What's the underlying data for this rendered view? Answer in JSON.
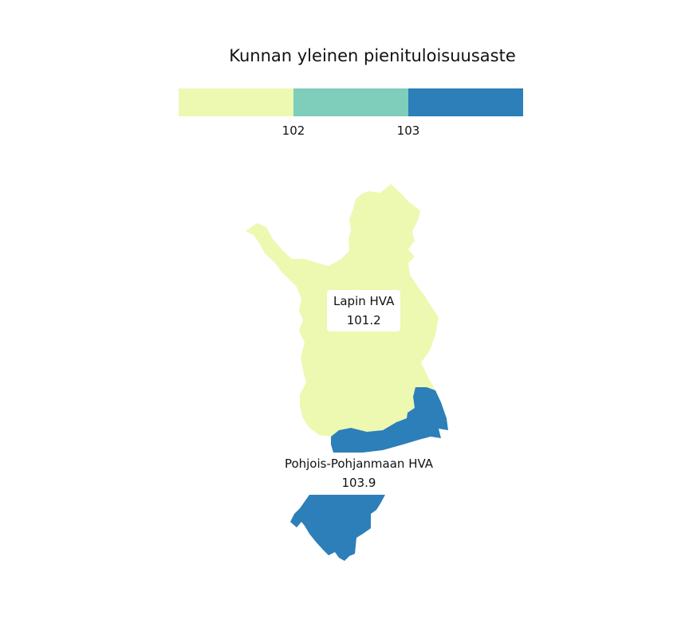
{
  "legend": {
    "title": "Kunnan yleinen pienituloisuusaste",
    "colors": [
      "#edf8b1",
      "#7fcdbb",
      "#2c7fb8"
    ],
    "ticks": [
      "102",
      "103"
    ]
  },
  "regions": [
    {
      "name": "Lapin HVA",
      "value": "101.2",
      "color": "#edf8b1"
    },
    {
      "name": "Pohjois-Pohjanmaan HVA",
      "value": "103.9",
      "color": "#2c7fb8"
    }
  ]
}
